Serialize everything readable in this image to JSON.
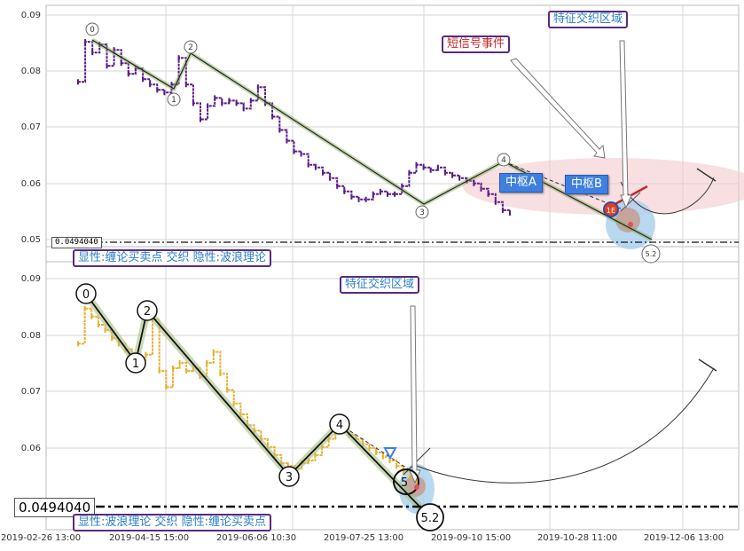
{
  "chart_data": [
    {
      "type": "line",
      "panel": "top",
      "ylim": [
        0.049,
        0.091
      ],
      "y_ticks": [
        "0.09",
        "0.08",
        "0.07",
        "0.06",
        "0.05"
      ],
      "grid": true,
      "series": [
        {
          "name": "",
          "color": "#5a1a8a",
          "x": [
            0,
            1,
            2,
            3,
            4,
            5,
            6,
            7,
            8,
            9,
            10,
            11,
            12,
            13,
            14,
            15,
            16,
            17,
            18,
            19,
            20,
            21,
            22,
            23,
            24,
            25,
            26,
            27,
            28,
            29,
            30,
            31,
            32,
            33,
            34,
            35,
            36,
            37,
            38,
            39,
            40,
            41,
            42,
            43,
            44,
            45,
            46,
            47,
            48,
            49,
            50,
            51,
            52,
            53,
            54,
            55,
            56,
            57,
            58,
            59,
            60
          ],
          "values": [
            0.0785,
            0.086,
            0.084,
            0.0855,
            0.0815,
            0.0845,
            0.082,
            0.08,
            0.081,
            0.079,
            0.078,
            0.077,
            0.0765,
            0.078,
            0.083,
            0.078,
            0.0745,
            0.0715,
            0.074,
            0.0755,
            0.0745,
            0.075,
            0.0745,
            0.0735,
            0.075,
            0.0775,
            0.0745,
            0.072,
            0.0695,
            0.0675,
            0.0655,
            0.065,
            0.063,
            0.0625,
            0.0615,
            0.0605,
            0.059,
            0.058,
            0.057,
            0.0565,
            0.0565,
            0.0575,
            0.058,
            0.0575,
            0.0575,
            0.059,
            0.0615,
            0.063,
            0.0625,
            0.062,
            0.0625,
            0.0615,
            0.061,
            0.0605,
            0.06,
            0.0595,
            0.0585,
            0.0575,
            0.056,
            0.0545,
            0.054
          ]
        }
      ],
      "wave_points": [
        {
          "label": "0",
          "x": 3,
          "y": 0.085
        },
        {
          "label": "1",
          "x": 17,
          "y": 0.076
        },
        {
          "label": "2",
          "x": 20,
          "y": 0.083
        },
        {
          "label": "3",
          "x": 60,
          "y": 0.0562
        },
        {
          "label": "4",
          "x": 74,
          "y": 0.063
        },
        {
          "label": "5.2",
          "x": 98,
          "y": 0.0493
        }
      ],
      "reference_line": 0.049404
    },
    {
      "type": "line",
      "panel": "bottom",
      "ylim": [
        0.0495,
        0.091
      ],
      "y_ticks": [
        "0.09",
        "0.08",
        "0.07",
        "0.06"
      ],
      "x_ticks": [
        "2019-02-26 13:00",
        "2019-04-15 15:00",
        "2019-06-06 10:30",
        "2019-07-25 13:00",
        "2019-09-10 15:00",
        "2019-10-28 11:00",
        "2019-12-06 13:00"
      ],
      "grid": true,
      "series": [
        {
          "name": "",
          "color": "#e8b030",
          "x": [
            0,
            1,
            2,
            3,
            4,
            5,
            6,
            7,
            8,
            9,
            10,
            11,
            12,
            13,
            14,
            15,
            16,
            17,
            18,
            19,
            20,
            21,
            22,
            23,
            24,
            25,
            26,
            27,
            28,
            29,
            30,
            31,
            32,
            33,
            34,
            35,
            36,
            37,
            38,
            39,
            40,
            41,
            42,
            43,
            44,
            45,
            46,
            47,
            48,
            49,
            50
          ],
          "values": [
            0.079,
            0.0855,
            0.084,
            0.0825,
            0.0815,
            0.08,
            0.079,
            0.078,
            0.077,
            0.076,
            0.077,
            0.0835,
            0.074,
            0.071,
            0.0745,
            0.0755,
            0.074,
            0.0745,
            0.073,
            0.0755,
            0.0775,
            0.0735,
            0.0705,
            0.068,
            0.066,
            0.064,
            0.063,
            0.0615,
            0.06,
            0.0585,
            0.057,
            0.0565,
            0.056,
            0.057,
            0.0575,
            0.0585,
            0.06,
            0.0615,
            0.0625,
            0.0628,
            0.0622,
            0.0615,
            0.0605,
            0.0598,
            0.059,
            0.0582,
            0.0575,
            0.0565,
            0.0555,
            0.0545,
            0.0535
          ]
        }
      ],
      "wave_points": [
        {
          "label": "0",
          "x": 1,
          "y": 0.087
        },
        {
          "label": "1",
          "x": 9,
          "y": 0.075
        },
        {
          "label": "2",
          "x": 11,
          "y": 0.084
        },
        {
          "label": "3",
          "x": 34,
          "y": 0.0535
        },
        {
          "label": "4",
          "x": 43,
          "y": 0.0625
        },
        {
          "label": "5",
          "x": 53,
          "y": 0.054
        },
        {
          "label": "5.2",
          "x": 56,
          "y": 0.05
        }
      ],
      "reference_line": 0.049404
    }
  ],
  "top_panel": {
    "price_label": "0.0494040",
    "legend": "显性:缠论买卖点 交织 隐性:波浪理论",
    "feature_zone_label": "特征交织区域",
    "short_signal_label": "短信号事件",
    "pivot_a": "中枢A",
    "pivot_b": "中枢B",
    "marker_label": "1E",
    "wave_labels": [
      "0",
      "1",
      "2",
      "3",
      "4",
      "5.2"
    ]
  },
  "bottom_panel": {
    "price_label": "0.0494040",
    "legend": "显性:波浪理论 交织 隐性:缠论买卖点",
    "feature_zone_label": "特征交织区域",
    "wave_labels": [
      "0",
      "1",
      "2",
      "3",
      "4",
      "5",
      "5.2"
    ]
  },
  "colors": {
    "top_price": "#5a1a8a",
    "bottom_price": "#e8b030",
    "legend_text": "#2a7fc7",
    "box_border": "#5a2a82",
    "signal_red": "#c0292b",
    "pivot_blue": "#3f7fe0",
    "grid": "#cfcfcf",
    "zone_pink": "#f2c9cf",
    "zone_blue": "#a8d0ee"
  }
}
